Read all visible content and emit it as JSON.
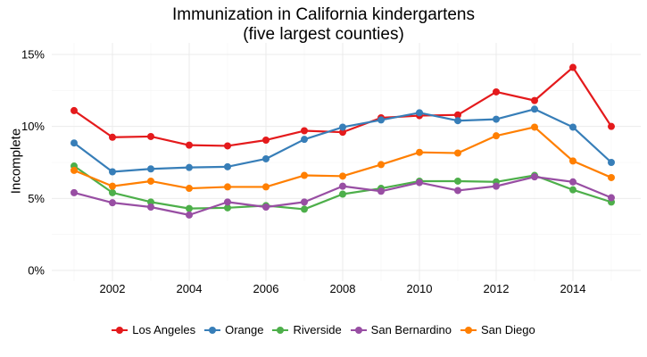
{
  "chart_data": {
    "type": "line",
    "title": "Immunization in California kindergartens",
    "subtitle": "(five largest counties)",
    "xlabel": "",
    "ylabel": "Incomplete",
    "x": [
      2001,
      2002,
      2003,
      2004,
      2005,
      2006,
      2007,
      2008,
      2009,
      2010,
      2011,
      2012,
      2013,
      2014,
      2015
    ],
    "xlim": [
      2000,
      2016
    ],
    "ylim": [
      0,
      15
    ],
    "x_ticks": [
      "2002",
      "2004",
      "2006",
      "2008",
      "2010",
      "2012",
      "2014"
    ],
    "y_ticks": [
      "0%",
      "5%",
      "10%",
      "15%"
    ],
    "grid": true,
    "legend_position": "bottom",
    "series": [
      {
        "name": "Los Angeles",
        "color": "#e41a1c",
        "values": [
          11.1,
          9.25,
          9.3,
          8.7,
          8.65,
          9.05,
          9.7,
          9.6,
          10.6,
          10.75,
          10.8,
          12.4,
          11.8,
          14.1,
          10.0
        ]
      },
      {
        "name": "Orange",
        "color": "#377eb8",
        "values": [
          8.85,
          6.85,
          7.05,
          7.15,
          7.2,
          7.75,
          9.1,
          9.95,
          10.45,
          10.95,
          10.4,
          10.5,
          11.2,
          9.95,
          7.5
        ]
      },
      {
        "name": "Riverside",
        "color": "#4daf4a",
        "values": [
          7.25,
          5.4,
          4.75,
          4.3,
          4.35,
          4.5,
          4.25,
          5.3,
          5.7,
          6.2,
          6.2,
          6.15,
          6.6,
          5.6,
          4.75
        ]
      },
      {
        "name": "San Bernardino",
        "color": "#984ea3",
        "values": [
          5.4,
          4.7,
          4.4,
          3.85,
          4.75,
          4.4,
          4.75,
          5.85,
          5.5,
          6.1,
          5.55,
          5.85,
          6.5,
          6.15,
          5.05
        ]
      },
      {
        "name": "San Diego",
        "color": "#ff7f00",
        "values": [
          6.95,
          5.85,
          6.2,
          5.7,
          5.8,
          5.8,
          6.6,
          6.55,
          7.35,
          8.2,
          8.15,
          9.35,
          9.95,
          7.6,
          6.45
        ]
      }
    ]
  }
}
